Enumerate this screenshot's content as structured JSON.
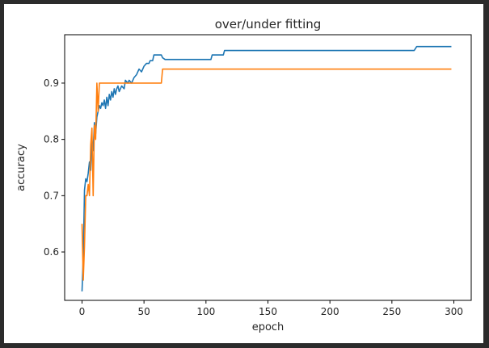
{
  "chart_data": {
    "type": "line",
    "title": "over/under fitting",
    "xlabel": "epoch",
    "ylabel": "accuracy",
    "xlim": [
      -14,
      314
    ],
    "ylim": [
      0.514,
      0.986
    ],
    "xticks": [
      0,
      50,
      100,
      150,
      200,
      250,
      300
    ],
    "yticks": [
      0.6,
      0.7,
      0.8,
      0.9
    ],
    "ytick_labels": [
      "0.6",
      "0.7",
      "0.8",
      "0.9"
    ],
    "grid": false,
    "series": [
      {
        "color": "#1f77b4",
        "points": [
          [
            0,
            0.53
          ],
          [
            1,
            0.59
          ],
          [
            2,
            0.71
          ],
          [
            3,
            0.73
          ],
          [
            4,
            0.725
          ],
          [
            5,
            0.74
          ],
          [
            6,
            0.76
          ],
          [
            7,
            0.745
          ],
          [
            8,
            0.8
          ],
          [
            9,
            0.78
          ],
          [
            10,
            0.83
          ],
          [
            11,
            0.81
          ],
          [
            12,
            0.84
          ],
          [
            13,
            0.85
          ],
          [
            14,
            0.86
          ],
          [
            15,
            0.855
          ],
          [
            16,
            0.865
          ],
          [
            17,
            0.86
          ],
          [
            18,
            0.87
          ],
          [
            19,
            0.855
          ],
          [
            20,
            0.875
          ],
          [
            21,
            0.86
          ],
          [
            22,
            0.88
          ],
          [
            23,
            0.87
          ],
          [
            24,
            0.885
          ],
          [
            25,
            0.875
          ],
          [
            26,
            0.89
          ],
          [
            27,
            0.88
          ],
          [
            28,
            0.89
          ],
          [
            29,
            0.895
          ],
          [
            30,
            0.885
          ],
          [
            32,
            0.895
          ],
          [
            34,
            0.89
          ],
          [
            35,
            0.905
          ],
          [
            37,
            0.9
          ],
          [
            38,
            0.905
          ],
          [
            40,
            0.9
          ],
          [
            42,
            0.91
          ],
          [
            44,
            0.915
          ],
          [
            46,
            0.925
          ],
          [
            48,
            0.92
          ],
          [
            50,
            0.93
          ],
          [
            52,
            0.935
          ],
          [
            54,
            0.935
          ],
          [
            55,
            0.94
          ],
          [
            57,
            0.94
          ],
          [
            58,
            0.95
          ],
          [
            64,
            0.95
          ],
          [
            65,
            0.945
          ],
          [
            67,
            0.942
          ],
          [
            104,
            0.942
          ],
          [
            105,
            0.95
          ],
          [
            114,
            0.95
          ],
          [
            115,
            0.958
          ],
          [
            268,
            0.958
          ],
          [
            270,
            0.965
          ],
          [
            298,
            0.965
          ]
        ]
      },
      {
        "color": "#ff7f0e",
        "points": [
          [
            0,
            0.65
          ],
          [
            1,
            0.55
          ],
          [
            2,
            0.61
          ],
          [
            3,
            0.7
          ],
          [
            4,
            0.7
          ],
          [
            5,
            0.72
          ],
          [
            6,
            0.7
          ],
          [
            7,
            0.79
          ],
          [
            8,
            0.82
          ],
          [
            9,
            0.7
          ],
          [
            10,
            0.825
          ],
          [
            11,
            0.8
          ],
          [
            12,
            0.9
          ],
          [
            13,
            0.85
          ],
          [
            14,
            0.9
          ],
          [
            64,
            0.9
          ],
          [
            65,
            0.925
          ],
          [
            298,
            0.925
          ]
        ]
      }
    ]
  }
}
